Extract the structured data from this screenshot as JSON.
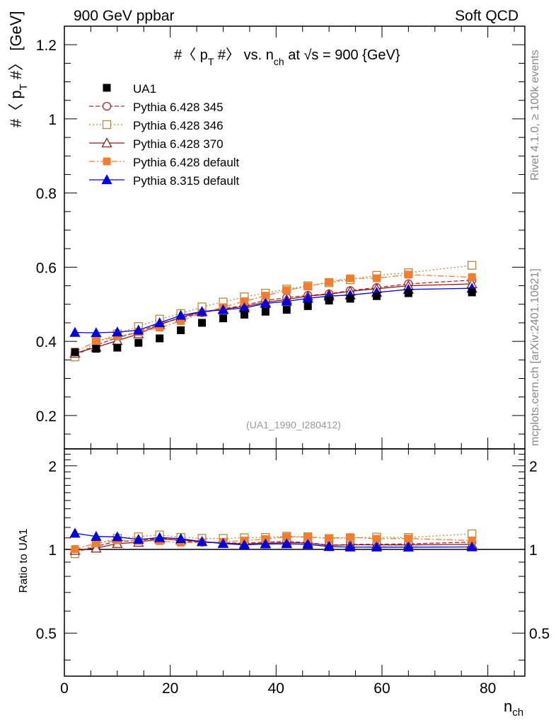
{
  "header": {
    "left": "900 GeV ppbar",
    "right": "Soft QCD"
  },
  "side_labels": {
    "top": "Rivet 4.1.0, ≥ 100k events",
    "bottom": "mcplots.cern.ch [arXiv:2401.10621]"
  },
  "chart_data": {
    "type": "scatter",
    "title_main": "#〈 p",
    "title_sub1": "T",
    "title_mid": " #〉 vs. n",
    "title_sub2": "ch",
    "title_end": " at √s = 900 {GeV}",
    "ylabel_main": "#〈 p",
    "ylabel_sub": "T",
    "ylabel_end": " #〉 [GeV]",
    "xlabel_main": "n",
    "xlabel_sub": "ch",
    "ratio_ylabel": "Ratio to UA1",
    "watermark": "(UA1_1990_I280412)",
    "xlim": [
      0,
      87
    ],
    "ylim": [
      0.11,
      1.25
    ],
    "ratio_ylim": [
      0.35,
      2.3
    ],
    "x_ticks": [
      "0",
      "20",
      "40",
      "60",
      "80"
    ],
    "y_ticks": [
      "0.2",
      "0.4",
      "0.6",
      "0.8",
      "1",
      "1.2"
    ],
    "ratio_ticks": [
      "0.5",
      "1",
      "2"
    ],
    "x": [
      2,
      6,
      10,
      14,
      18,
      22,
      26,
      30,
      34,
      38,
      42,
      46,
      50,
      54,
      59,
      65,
      77
    ],
    "data": {
      "name": "UA1",
      "values": [
        0.371,
        0.38,
        0.383,
        0.396,
        0.408,
        0.43,
        0.45,
        0.462,
        0.472,
        0.48,
        0.485,
        0.495,
        0.51,
        0.515,
        0.522,
        0.53,
        0.532
      ]
    },
    "series": [
      {
        "name": "Pythia 6.428 345",
        "color": "#b22234",
        "marker": "circle-open",
        "dash": "6,3",
        "values": [
          0.362,
          0.39,
          0.41,
          0.425,
          0.448,
          0.462,
          0.477,
          0.488,
          0.497,
          0.51,
          0.518,
          0.524,
          0.528,
          0.537,
          0.545,
          0.555,
          0.565
        ]
      },
      {
        "name": "Pythia 6.428 346",
        "color": "#b5893a",
        "marker": "square-open",
        "dash": "2,3",
        "values": [
          0.358,
          0.398,
          0.42,
          0.44,
          0.46,
          0.475,
          0.493,
          0.506,
          0.52,
          0.53,
          0.541,
          0.55,
          0.558,
          0.566,
          0.578,
          0.585,
          0.605
        ]
      },
      {
        "name": "Pythia 6.428 370",
        "color": "#8b1a1a",
        "marker": "triangle-open",
        "dash": "",
        "values": [
          0.368,
          0.384,
          0.402,
          0.42,
          0.445,
          0.465,
          0.48,
          0.487,
          0.494,
          0.505,
          0.513,
          0.522,
          0.527,
          0.535,
          0.542,
          0.55,
          0.555
        ]
      },
      {
        "name": "Pythia 6.428 default",
        "color": "#f47c2c",
        "marker": "square-filled",
        "dash": "8,3,2,3",
        "values": [
          0.372,
          0.4,
          0.413,
          0.425,
          0.437,
          0.455,
          0.477,
          0.492,
          0.508,
          0.523,
          0.538,
          0.548,
          0.56,
          0.57,
          0.57,
          0.58,
          0.573
        ]
      },
      {
        "name": "Pythia 8.315 default",
        "color": "#0000e0",
        "marker": "triangle-filled",
        "dash": "",
        "values": [
          0.424,
          0.423,
          0.425,
          0.43,
          0.45,
          0.47,
          0.48,
          0.485,
          0.49,
          0.502,
          0.508,
          0.516,
          0.522,
          0.525,
          0.532,
          0.54,
          0.543
        ]
      }
    ]
  }
}
